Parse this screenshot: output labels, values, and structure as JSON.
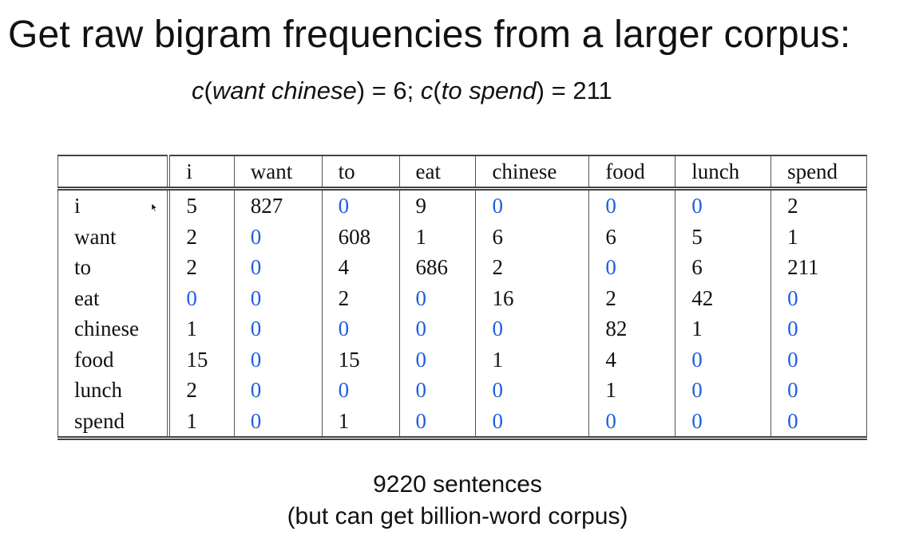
{
  "title": "Get raw bigram frequencies from a larger corpus:",
  "formula": {
    "c1": "c",
    "phrase1": "want chinese",
    "rest1": ") = 6; ",
    "c2": "c",
    "phrase2": "to spend",
    "rest2": ") = 211",
    "open": "("
  },
  "table": {
    "columns": [
      "",
      "i",
      "want",
      "to",
      "eat",
      "chinese",
      "food",
      "lunch",
      "spend"
    ],
    "rows": [
      {
        "label": "i",
        "values": [
          "5",
          "827",
          "0",
          "9",
          "0",
          "0",
          "0",
          "2"
        ]
      },
      {
        "label": "want",
        "values": [
          "2",
          "0",
          "608",
          "1",
          "6",
          "6",
          "5",
          "1"
        ]
      },
      {
        "label": "to",
        "values": [
          "2",
          "0",
          "4",
          "686",
          "2",
          "0",
          "6",
          "211"
        ]
      },
      {
        "label": "eat",
        "values": [
          "0",
          "0",
          "2",
          "0",
          "16",
          "2",
          "42",
          "0"
        ]
      },
      {
        "label": "chinese",
        "values": [
          "1",
          "0",
          "0",
          "0",
          "0",
          "82",
          "1",
          "0"
        ]
      },
      {
        "label": "food",
        "values": [
          "15",
          "0",
          "15",
          "0",
          "1",
          "4",
          "0",
          "0"
        ]
      },
      {
        "label": "lunch",
        "values": [
          "2",
          "0",
          "0",
          "0",
          "0",
          "1",
          "0",
          "0"
        ]
      },
      {
        "label": "spend",
        "values": [
          "1",
          "0",
          "1",
          "0",
          "0",
          "0",
          "0",
          "0"
        ]
      }
    ],
    "zero_color": "#1f5fe0"
  },
  "footer": {
    "line1": "9220 sentences",
    "line2": "(but can get billion-word corpus)"
  },
  "icons": {
    "pointer": "mouse-pointer-icon"
  }
}
